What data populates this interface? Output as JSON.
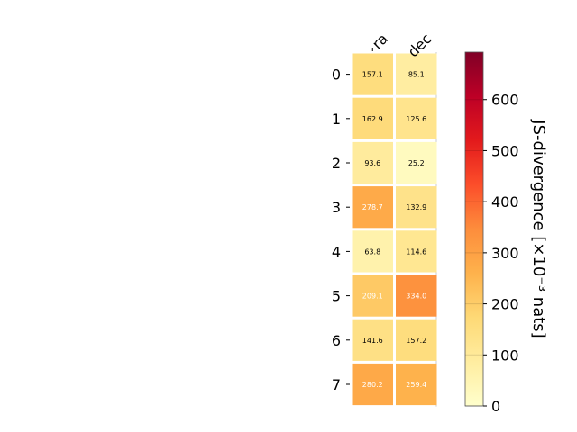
{
  "chart_data": {
    "type": "heatmap",
    "columns": [
      "ra",
      "dec"
    ],
    "rows": [
      "0",
      "1",
      "2",
      "3",
      "4",
      "5",
      "6",
      "7"
    ],
    "values": [
      [
        157.1,
        85.1
      ],
      [
        162.9,
        125.6
      ],
      [
        93.6,
        25.2
      ],
      [
        278.7,
        132.9
      ],
      [
        63.8,
        114.6
      ],
      [
        209.1,
        334.0
      ],
      [
        141.6,
        157.2
      ],
      [
        280.2,
        259.4
      ]
    ],
    "value_labels": [
      [
        "157.1",
        "85.1"
      ],
      [
        "162.9",
        "125.6"
      ],
      [
        "93.6",
        "25.2"
      ],
      [
        "278.7",
        "132.9"
      ],
      [
        "63.8",
        "114.6"
      ],
      [
        "209.1",
        "334.0"
      ],
      [
        "141.6",
        "157.2"
      ],
      [
        "280.2",
        "259.4"
      ]
    ],
    "colorbar": {
      "label": "JS-divergence [×10⁻³ nats]",
      "range": [
        0,
        693
      ],
      "ticks": [
        0,
        100,
        200,
        300,
        400,
        500,
        600
      ],
      "colormap": "YlOrRd",
      "colormap_stops": [
        "#ffffcc",
        "#ffeda0",
        "#fed976",
        "#feb24c",
        "#fd8d3c",
        "#fc4e2a",
        "#e31a1c",
        "#bd0026",
        "#800026"
      ]
    },
    "text_color_threshold": 200,
    "grid": false
  }
}
